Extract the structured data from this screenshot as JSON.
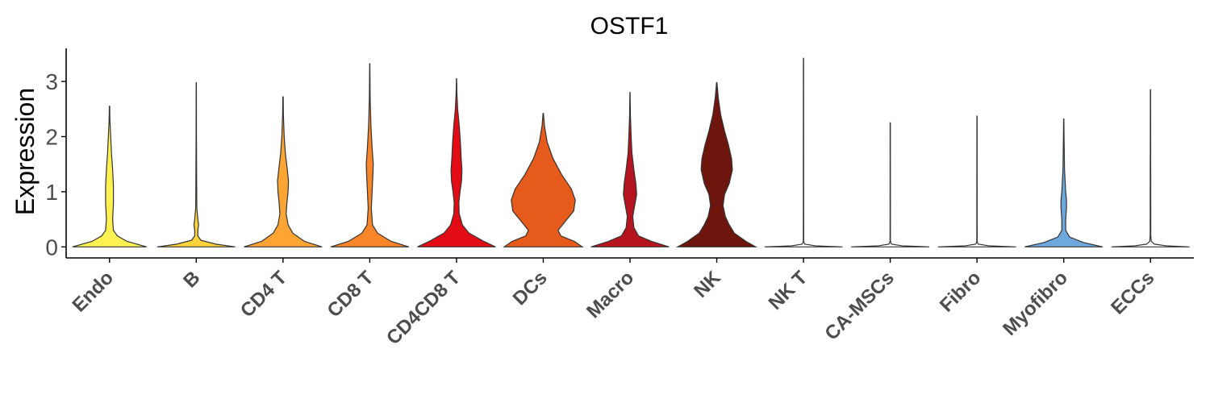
{
  "chart_data": {
    "type": "violin",
    "title": "OSTF1",
    "xlabel": "",
    "ylabel": "Expression",
    "ylim": [
      -0.2,
      3.6
    ],
    "yticks": [
      0,
      1,
      2,
      3
    ],
    "grid": false,
    "legend": "none",
    "categories": [
      "Endo",
      "B",
      "CD4 T",
      "CD8 T",
      "CD4CD8 T",
      "DCs",
      "Macro",
      "NK",
      "NK T",
      "CA-MSCs",
      "Fibro",
      "Myofibro",
      "ECCs"
    ],
    "series": [
      {
        "category": "Endo",
        "color": "#FFF152",
        "max": 2.55,
        "density": [
          [
            0,
            0.95
          ],
          [
            0.1,
            0.45
          ],
          [
            0.2,
            0.2
          ],
          [
            0.3,
            0.1
          ],
          [
            0.5,
            0.08
          ],
          [
            0.8,
            0.1
          ],
          [
            1.1,
            0.1
          ],
          [
            1.4,
            0.08
          ],
          [
            1.7,
            0.05
          ],
          [
            2.0,
            0.03
          ],
          [
            2.3,
            0.01
          ],
          [
            2.55,
            0.005
          ]
        ]
      },
      {
        "category": "B",
        "color": "#FFD33C",
        "max": 2.98,
        "density": [
          [
            0,
            1.0
          ],
          [
            0.05,
            0.5
          ],
          [
            0.12,
            0.12
          ],
          [
            0.2,
            0.04
          ],
          [
            0.3,
            0.04
          ],
          [
            0.4,
            0.06
          ],
          [
            0.5,
            0.04
          ],
          [
            0.7,
            0.015
          ],
          [
            1.2,
            0.01
          ],
          [
            2.0,
            0.005
          ],
          [
            2.98,
            0.003
          ]
        ]
      },
      {
        "category": "CD4 T",
        "color": "#FDA534",
        "max": 2.72,
        "density": [
          [
            0,
            1.0
          ],
          [
            0.1,
            0.55
          ],
          [
            0.25,
            0.25
          ],
          [
            0.4,
            0.13
          ],
          [
            0.6,
            0.08
          ],
          [
            0.8,
            0.1
          ],
          [
            1.0,
            0.13
          ],
          [
            1.2,
            0.14
          ],
          [
            1.4,
            0.11
          ],
          [
            1.7,
            0.06
          ],
          [
            2.0,
            0.03
          ],
          [
            2.4,
            0.01
          ],
          [
            2.72,
            0.005
          ]
        ]
      },
      {
        "category": "CD8 T",
        "color": "#F98529",
        "max": 3.32,
        "density": [
          [
            0,
            1.0
          ],
          [
            0.1,
            0.55
          ],
          [
            0.25,
            0.2
          ],
          [
            0.4,
            0.07
          ],
          [
            0.7,
            0.04
          ],
          [
            1.0,
            0.06
          ],
          [
            1.3,
            0.08
          ],
          [
            1.5,
            0.09
          ],
          [
            1.8,
            0.06
          ],
          [
            2.2,
            0.03
          ],
          [
            2.7,
            0.01
          ],
          [
            3.32,
            0.003
          ]
        ]
      },
      {
        "category": "CD4CD8 T",
        "color": "#E30C14",
        "max": 3.05,
        "density": [
          [
            0,
            1.0
          ],
          [
            0.1,
            0.7
          ],
          [
            0.25,
            0.32
          ],
          [
            0.4,
            0.15
          ],
          [
            0.6,
            0.07
          ],
          [
            0.8,
            0.06
          ],
          [
            1.0,
            0.09
          ],
          [
            1.2,
            0.13
          ],
          [
            1.4,
            0.14
          ],
          [
            1.6,
            0.12
          ],
          [
            1.9,
            0.1
          ],
          [
            2.2,
            0.07
          ],
          [
            2.5,
            0.03
          ],
          [
            2.8,
            0.01
          ],
          [
            3.05,
            0.003
          ]
        ]
      },
      {
        "category": "DCs",
        "color": "#E65A1C",
        "max": 2.42,
        "density": [
          [
            0,
            1.0
          ],
          [
            0.1,
            0.8
          ],
          [
            0.2,
            0.45
          ],
          [
            0.3,
            0.38
          ],
          [
            0.45,
            0.55
          ],
          [
            0.65,
            0.78
          ],
          [
            0.85,
            0.82
          ],
          [
            1.05,
            0.72
          ],
          [
            1.3,
            0.48
          ],
          [
            1.6,
            0.25
          ],
          [
            1.9,
            0.1
          ],
          [
            2.2,
            0.03
          ],
          [
            2.42,
            0.005
          ]
        ]
      },
      {
        "category": "Macro",
        "color": "#B5141E",
        "max": 2.8,
        "density": [
          [
            0,
            1.0
          ],
          [
            0.1,
            0.55
          ],
          [
            0.2,
            0.22
          ],
          [
            0.35,
            0.1
          ],
          [
            0.55,
            0.07
          ],
          [
            0.75,
            0.12
          ],
          [
            0.95,
            0.17
          ],
          [
            1.15,
            0.15
          ],
          [
            1.4,
            0.1
          ],
          [
            1.7,
            0.05
          ],
          [
            2.0,
            0.03
          ],
          [
            2.4,
            0.01
          ],
          [
            2.8,
            0.003
          ]
        ]
      },
      {
        "category": "NK",
        "color": "#6E160E",
        "max": 2.98,
        "density": [
          [
            0,
            1.0
          ],
          [
            0.1,
            0.75
          ],
          [
            0.25,
            0.45
          ],
          [
            0.4,
            0.32
          ],
          [
            0.55,
            0.22
          ],
          [
            0.75,
            0.16
          ],
          [
            0.95,
            0.2
          ],
          [
            1.15,
            0.32
          ],
          [
            1.4,
            0.4
          ],
          [
            1.6,
            0.38
          ],
          [
            1.85,
            0.3
          ],
          [
            2.1,
            0.2
          ],
          [
            2.4,
            0.1
          ],
          [
            2.7,
            0.04
          ],
          [
            2.98,
            0.005
          ]
        ]
      },
      {
        "category": "NK T",
        "color": "#FFFFFF",
        "max": 3.42,
        "density": [
          [
            0,
            1.0
          ],
          [
            0.02,
            0.3
          ],
          [
            0.05,
            0.03
          ],
          [
            0.1,
            0.005
          ],
          [
            3.42,
            0.003
          ]
        ]
      },
      {
        "category": "CA-MSCs",
        "color": "#FFFFFF",
        "max": 2.25,
        "density": [
          [
            0,
            1.0
          ],
          [
            0.02,
            0.3
          ],
          [
            0.05,
            0.03
          ],
          [
            0.1,
            0.005
          ],
          [
            2.25,
            0.003
          ]
        ]
      },
      {
        "category": "Fibro",
        "color": "#FFFFFF",
        "max": 2.37,
        "density": [
          [
            0,
            1.0
          ],
          [
            0.02,
            0.3
          ],
          [
            0.05,
            0.03
          ],
          [
            0.1,
            0.005
          ],
          [
            2.37,
            0.003
          ]
        ]
      },
      {
        "category": "Myofibro",
        "color": "#6FA8DC",
        "max": 2.32,
        "density": [
          [
            0,
            1.0
          ],
          [
            0.08,
            0.5
          ],
          [
            0.18,
            0.15
          ],
          [
            0.3,
            0.05
          ],
          [
            0.5,
            0.05
          ],
          [
            0.7,
            0.07
          ],
          [
            0.85,
            0.07
          ],
          [
            1.0,
            0.05
          ],
          [
            1.4,
            0.02
          ],
          [
            1.9,
            0.01
          ],
          [
            2.32,
            0.003
          ]
        ]
      },
      {
        "category": "ECCs",
        "color": "#FFFFFF",
        "max": 2.85,
        "density": [
          [
            0,
            1.0
          ],
          [
            0.02,
            0.4
          ],
          [
            0.05,
            0.1
          ],
          [
            0.1,
            0.02
          ],
          [
            0.2,
            0.008
          ],
          [
            2.85,
            0.003
          ]
        ]
      }
    ]
  }
}
